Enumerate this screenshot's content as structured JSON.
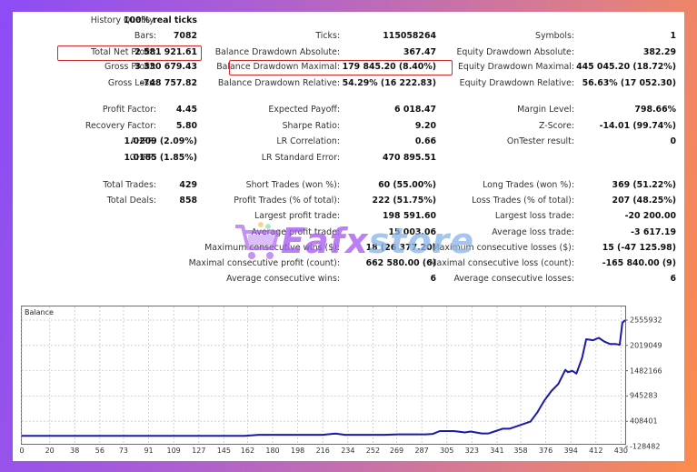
{
  "report": {
    "col1": [
      {
        "label": "History Quality:",
        "value": "100% real ticks"
      },
      {
        "label": "Bars:",
        "value": "7082"
      },
      {
        "label": "Total Net Profit:",
        "value": "2 581 921.61"
      },
      {
        "label": "Gross Profit:",
        "value": "3 330 679.43"
      },
      {
        "label": "Gross Loss:",
        "value": "-748 757.82"
      },
      {
        "label": "Profit Factor:",
        "value": "4.45"
      },
      {
        "label": "Recovery Factor:",
        "value": "5.80"
      },
      {
        "label": "AHPR:",
        "value": "1.0209 (2.09%)"
      },
      {
        "label": "GHPR:",
        "value": "1.0185 (1.85%)"
      },
      {
        "label": "Total Trades:",
        "value": "429"
      },
      {
        "label": "Total Deals:",
        "value": "858"
      }
    ],
    "col2": [
      {
        "label": "Ticks:",
        "value": "115058264"
      },
      {
        "label": "Balance Drawdown Absolute:",
        "value": "367.47"
      },
      {
        "label": "Balance Drawdown Maximal:",
        "value": "179 845.20 (8.40%)"
      },
      {
        "label": "Balance Drawdown Relative:",
        "value": "54.29% (16 222.83)"
      },
      {
        "label": "Expected Payoff:",
        "value": "6 018.47"
      },
      {
        "label": "Sharpe Ratio:",
        "value": "9.20"
      },
      {
        "label": "LR Correlation:",
        "value": "0.66"
      },
      {
        "label": "LR Standard Error:",
        "value": "470 895.51"
      },
      {
        "label": "Short Trades (won %):",
        "value": "60 (55.00%)"
      },
      {
        "label": "Profit Trades (% of total):",
        "value": "222 (51.75%)"
      },
      {
        "label": "Largest profit trade:",
        "value": "198 591.60"
      },
      {
        "label": "Average profit trade:",
        "value": "15 003.06"
      },
      {
        "label": "Maximum consecutive wins ($):",
        "value": "18 (26 377.20)"
      },
      {
        "label": "Maximal consecutive profit (count):",
        "value": "662 580.00 (6)"
      },
      {
        "label": "Average consecutive wins:",
        "value": "6"
      }
    ],
    "col3": [
      {
        "label": "Symbols:",
        "value": "1"
      },
      {
        "label": "Equity Drawdown Absolute:",
        "value": "382.29"
      },
      {
        "label": "Equity Drawdown Maximal:",
        "value": "445 045.20 (18.72%)"
      },
      {
        "label": "Equity Drawdown Relative:",
        "value": "56.63% (17 052.30)"
      },
      {
        "label": "Margin Level:",
        "value": "798.66%"
      },
      {
        "label": "Z-Score:",
        "value": "-14.01 (99.74%)"
      },
      {
        "label": "OnTester result:",
        "value": "0"
      },
      {
        "label": "Long Trades (won %):",
        "value": "369 (51.22%)"
      },
      {
        "label": "Loss Trades (% of total):",
        "value": "207 (48.25%)"
      },
      {
        "label": "Largest loss trade:",
        "value": "-20 200.00"
      },
      {
        "label": "Average loss trade:",
        "value": "-3 617.19"
      },
      {
        "label": "Maximum consecutive losses ($):",
        "value": "15 (-47 125.98)"
      },
      {
        "label": "Maximal consecutive loss (count):",
        "value": "-165 840.00 (9)"
      },
      {
        "label": "Average consecutive losses:",
        "value": "6"
      }
    ]
  },
  "highlight_color": "#d62a2a",
  "watermark": {
    "part1": "Eafx",
    "part2": "store",
    "icon": "shopping-cart-icon"
  },
  "chart": {
    "title": "Balance",
    "line_color": "#1a1aa6",
    "x_ticks": [
      "0",
      "20",
      "38",
      "56",
      "73",
      "91",
      "109",
      "127",
      "145",
      "162",
      "180",
      "198",
      "216",
      "234",
      "252",
      "269",
      "287",
      "305",
      "323",
      "341",
      "358",
      "376",
      "394",
      "412",
      "430"
    ],
    "y_ticks": [
      "2555932",
      "2019049",
      "1482166",
      "945283",
      "408401",
      "-128482"
    ]
  },
  "chart_data": {
    "type": "line",
    "title": "Balance",
    "xlabel": "",
    "ylabel": "",
    "x_ticks": [
      0,
      20,
      38,
      56,
      73,
      91,
      109,
      127,
      145,
      162,
      180,
      198,
      216,
      234,
      252,
      269,
      287,
      305,
      323,
      341,
      358,
      376,
      394,
      412,
      430
    ],
    "y_ticks": [
      2555932,
      2019049,
      1482166,
      945283,
      408401,
      -128482
    ],
    "ylim": [
      -128482,
      2555932
    ],
    "xlim": [
      0,
      433
    ],
    "grid": true,
    "series": [
      {
        "name": "Balance",
        "x": [
          0,
          20,
          40,
          60,
          80,
          100,
          120,
          140,
          160,
          170,
          180,
          200,
          216,
          225,
          232,
          240,
          260,
          270,
          280,
          290,
          295,
          300,
          310,
          318,
          322,
          330,
          335,
          340,
          345,
          350,
          355,
          360,
          365,
          370,
          375,
          380,
          385,
          390,
          392,
          395,
          398,
          402,
          405,
          410,
          414,
          418,
          422,
          426,
          429,
          431,
          433
        ],
        "y": [
          100000,
          100000,
          100000,
          100000,
          100000,
          100000,
          100000,
          100000,
          100000,
          120000,
          120000,
          120000,
          120000,
          145000,
          120000,
          120000,
          120000,
          130000,
          130000,
          130000,
          140000,
          200000,
          200000,
          170000,
          190000,
          150000,
          150000,
          200000,
          250000,
          250000,
          300000,
          350000,
          400000,
          600000,
          850000,
          1050000,
          1200000,
          1500000,
          1450000,
          1480000,
          1420000,
          1750000,
          2150000,
          2130000,
          2180000,
          2100000,
          2050000,
          2050000,
          2030000,
          2500000,
          2555932
        ]
      }
    ]
  }
}
